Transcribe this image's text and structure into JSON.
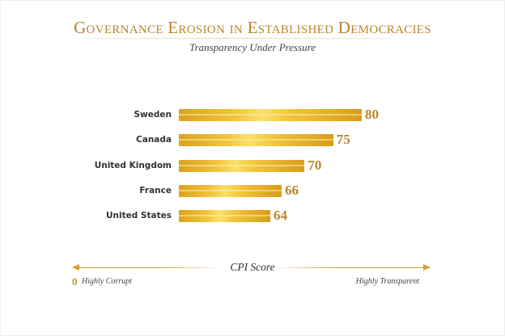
{
  "chart_data": {
    "type": "bar",
    "orientation": "horizontal",
    "title": "Governance Erosion in Established Democracies",
    "subtitle": "Transparency Under Pressure",
    "categories": [
      "Sweden",
      "Canada",
      "United Kingdom",
      "France",
      "United States"
    ],
    "values": [
      80,
      75,
      70,
      66,
      64
    ],
    "xlabel": "CPI Score",
    "axis_start_label": "0",
    "axis_low_label": "Highly Corrupt",
    "axis_high_label": "Highly Transparent",
    "grid": false,
    "colors": {
      "bar": "#f0c33a",
      "accent": "#b8862a"
    }
  }
}
